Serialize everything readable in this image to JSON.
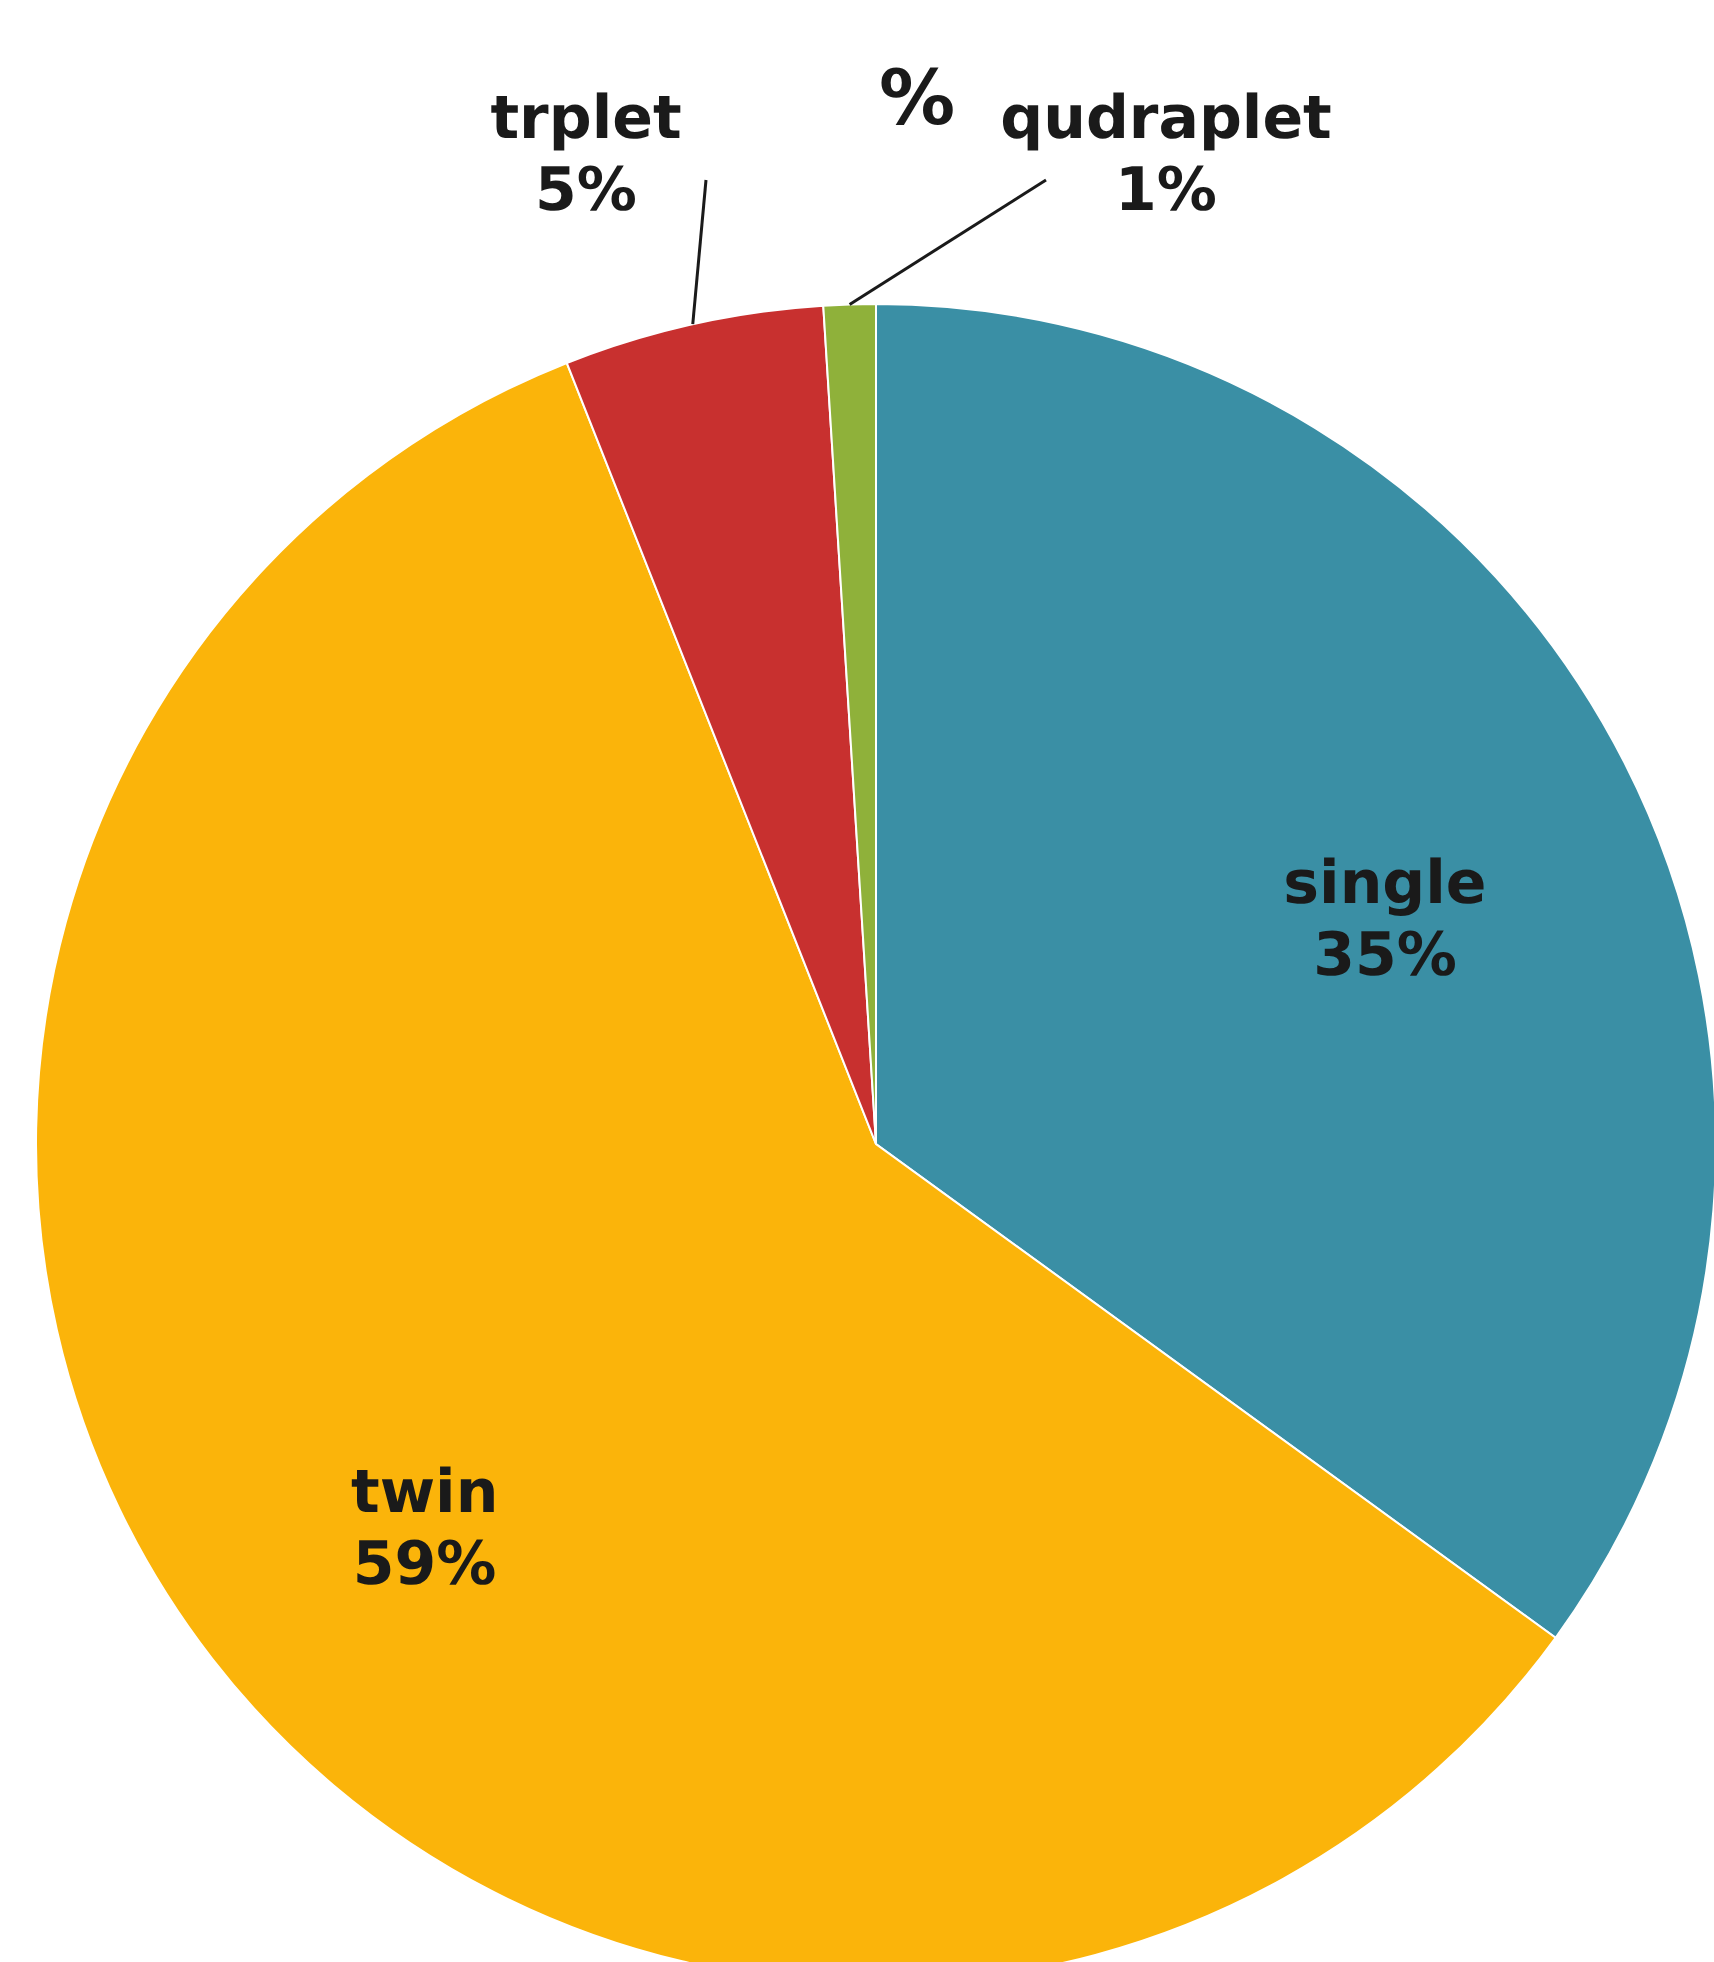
{
  "chart_data": {
    "type": "pie",
    "title": "%",
    "categories": [
      "single",
      "twin",
      "trplet",
      "qudraplet"
    ],
    "values": [
      35,
      59,
      5,
      1
    ],
    "colors": [
      "#3a8fa5",
      "#fbb40a",
      "#c8302f",
      "#8fb13a"
    ],
    "value_labels": [
      "35%",
      "59%",
      "5%",
      "1%"
    ]
  }
}
